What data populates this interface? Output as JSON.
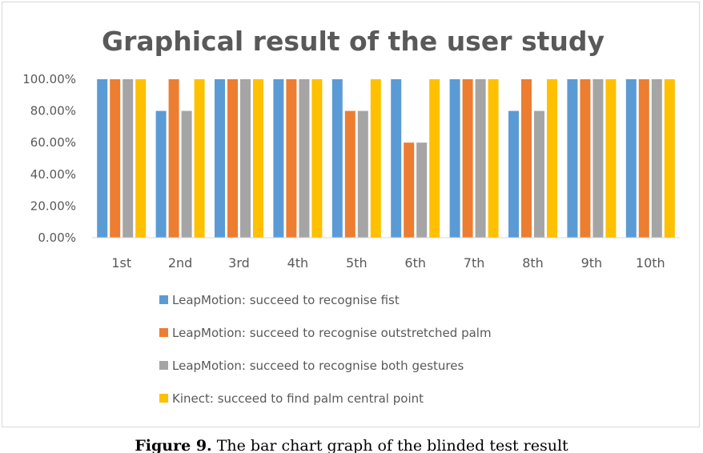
{
  "caption": {
    "label": "Figure 9.",
    "text": "The bar chart graph of the blinded test result"
  },
  "chart_data": {
    "type": "bar",
    "title": "Graphical result of the user study",
    "xlabel": "",
    "ylabel": "",
    "categories": [
      "1st",
      "2nd",
      "3rd",
      "4th",
      "5th",
      "6th",
      "7th",
      "8th",
      "9th",
      "10th"
    ],
    "ylim": [
      0,
      1
    ],
    "yticks": [
      "0.00%",
      "20.00%",
      "40.00%",
      "60.00%",
      "80.00%",
      "100.00%"
    ],
    "grid": false,
    "legend_position": "bottom",
    "series": [
      {
        "name": "LeapMotion: succeed to recognise fist",
        "color": "#5B9BD5",
        "values": [
          1.0,
          0.8,
          1.0,
          1.0,
          1.0,
          1.0,
          1.0,
          0.8,
          1.0,
          1.0
        ]
      },
      {
        "name": "LeapMotion: succeed to recognise outstretched palm",
        "color": "#ED7D31",
        "values": [
          1.0,
          1.0,
          1.0,
          1.0,
          0.8,
          0.6,
          1.0,
          1.0,
          1.0,
          1.0
        ]
      },
      {
        "name": "LeapMotion: succeed to recognise both gestures",
        "color": "#A5A5A5",
        "values": [
          1.0,
          0.8,
          1.0,
          1.0,
          0.8,
          0.6,
          1.0,
          0.8,
          1.0,
          1.0
        ]
      },
      {
        "name": "Kinect: succeed to find palm central point",
        "color": "#FFC000",
        "values": [
          1.0,
          1.0,
          1.0,
          1.0,
          1.0,
          1.0,
          1.0,
          1.0,
          1.0,
          1.0
        ]
      }
    ]
  }
}
